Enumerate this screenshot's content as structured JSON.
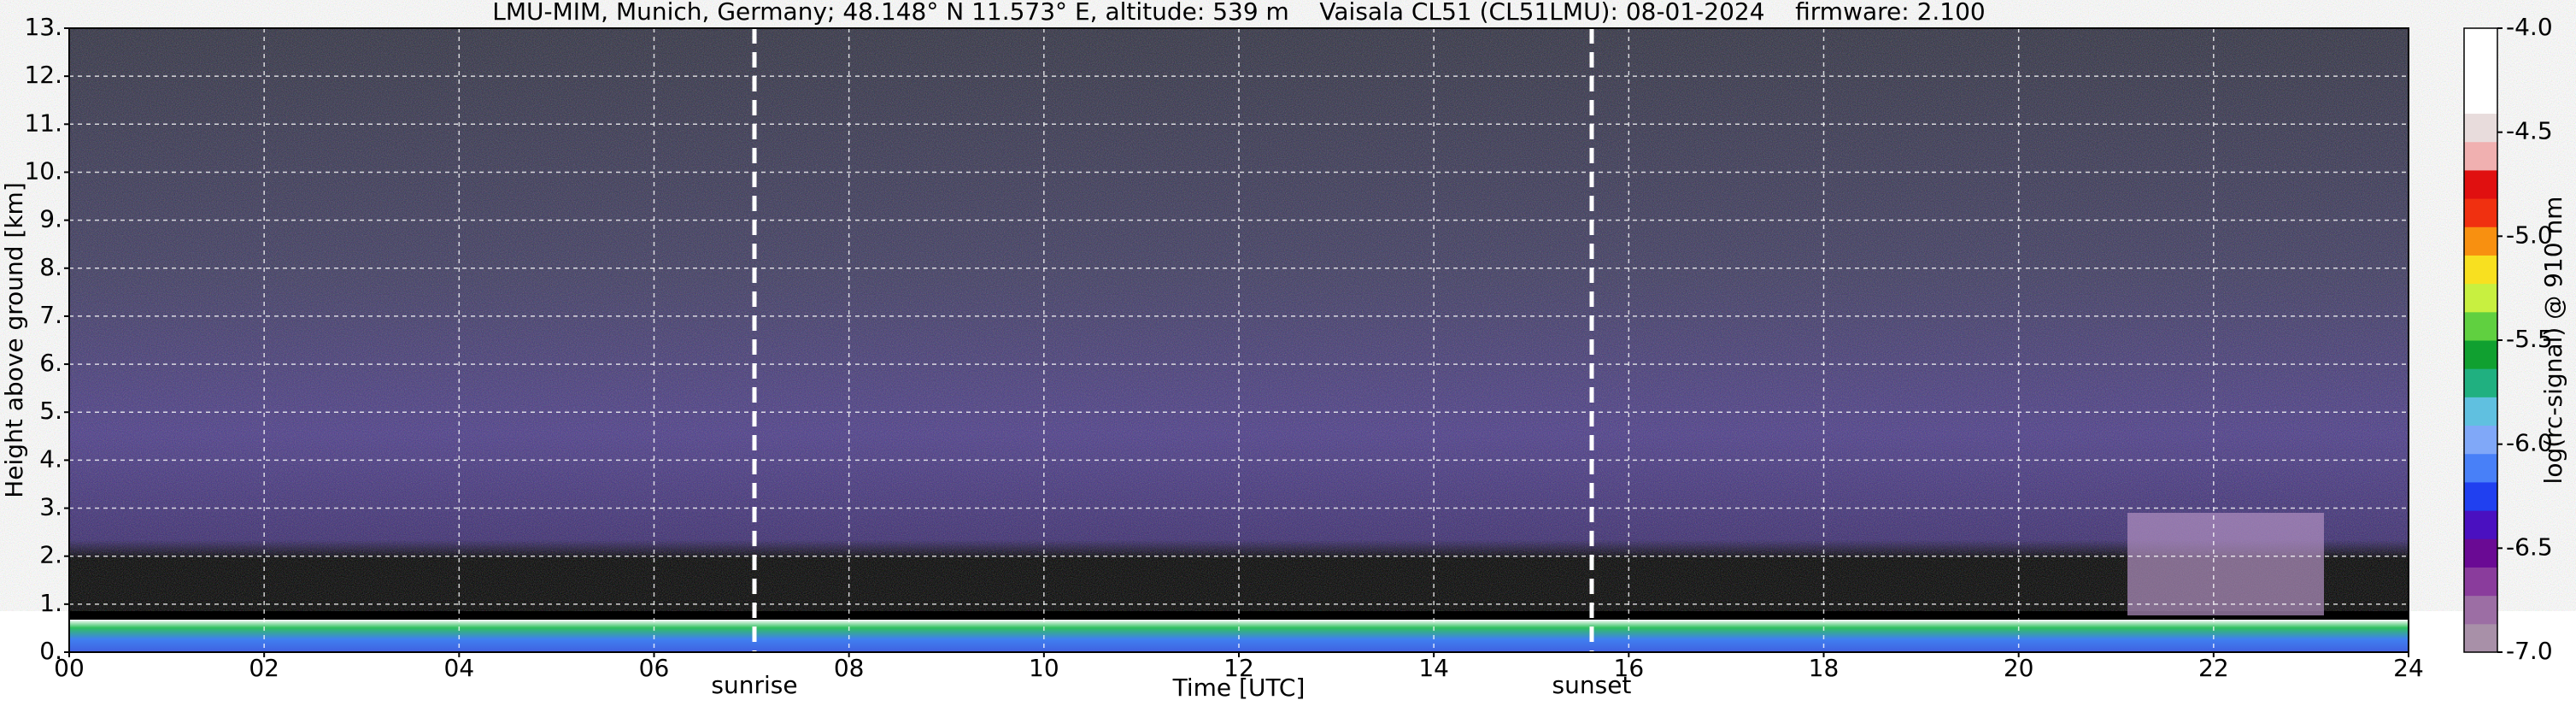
{
  "chart_data": {
    "type": "heatmap",
    "title": "LMU-MIM, Munich, Germany; 48.148° N 11.573° E, altitude: 539 m    Vaisala CL51 (CL51LMU): 08-01-2024    firmware: 2.100",
    "xlabel": "Time [UTC]",
    "ylabel": "Height above ground [km]",
    "xlim": [
      0,
      24
    ],
    "xticks": [
      {
        "value": 0,
        "label": "00"
      },
      {
        "value": 2,
        "label": "02"
      },
      {
        "value": 4,
        "label": "04"
      },
      {
        "value": 6,
        "label": "06"
      },
      {
        "value": 8,
        "label": "08"
      },
      10,
      12,
      14,
      16,
      18,
      20,
      22,
      24
    ],
    "ylim": [
      0,
      13
    ],
    "yticks": [
      {
        "value": 0,
        "label": "0."
      },
      {
        "value": 1,
        "label": "1."
      },
      {
        "value": 2,
        "label": "2."
      },
      {
        "value": 3,
        "label": "3."
      },
      {
        "value": 4,
        "label": "4."
      },
      {
        "value": 5,
        "label": "5."
      },
      {
        "value": 6,
        "label": "6."
      },
      {
        "value": 7,
        "label": "7."
      },
      {
        "value": 8,
        "label": "8."
      },
      {
        "value": 9,
        "label": "9."
      },
      {
        "value": 10,
        "label": "10."
      },
      {
        "value": 11,
        "label": "11."
      },
      {
        "value": 12,
        "label": "12."
      },
      {
        "value": 13,
        "label": "13."
      }
    ],
    "grid": true,
    "annotations": [
      {
        "text": "sunrise",
        "x": 7.03
      },
      {
        "text": "sunset",
        "x": 15.62
      }
    ],
    "colorbar_label": "log(rc-signal) @ 910 nm",
    "clim": [
      -7.0,
      -4.0
    ],
    "cticks": [
      {
        "value": -7.0,
        "label": "-7.0"
      },
      {
        "value": -6.5,
        "label": "-6.5"
      },
      {
        "value": -6.0,
        "label": "-6.0"
      },
      {
        "value": -5.5,
        "label": "-5.5"
      },
      {
        "value": -5.0,
        "label": "-5.0"
      },
      {
        "value": -4.5,
        "label": "-4.5"
      },
      {
        "value": -4.0,
        "label": "-4.0"
      }
    ],
    "colormap": [
      "#a890a8",
      "#9c6ea4",
      "#8a3c9c",
      "#6a0a94",
      "#4a10c0",
      "#2040f0",
      "#4880f8",
      "#80a8f8",
      "#60c0e0",
      "#20b080",
      "#10a030",
      "#60d040",
      "#c8f040",
      "#f8e020",
      "#f89010",
      "#f03010",
      "#e01010",
      "#f0b0b0",
      "#e8dcdc",
      "#ffffff",
      "#ffffff",
      "#ffffff"
    ]
  }
}
